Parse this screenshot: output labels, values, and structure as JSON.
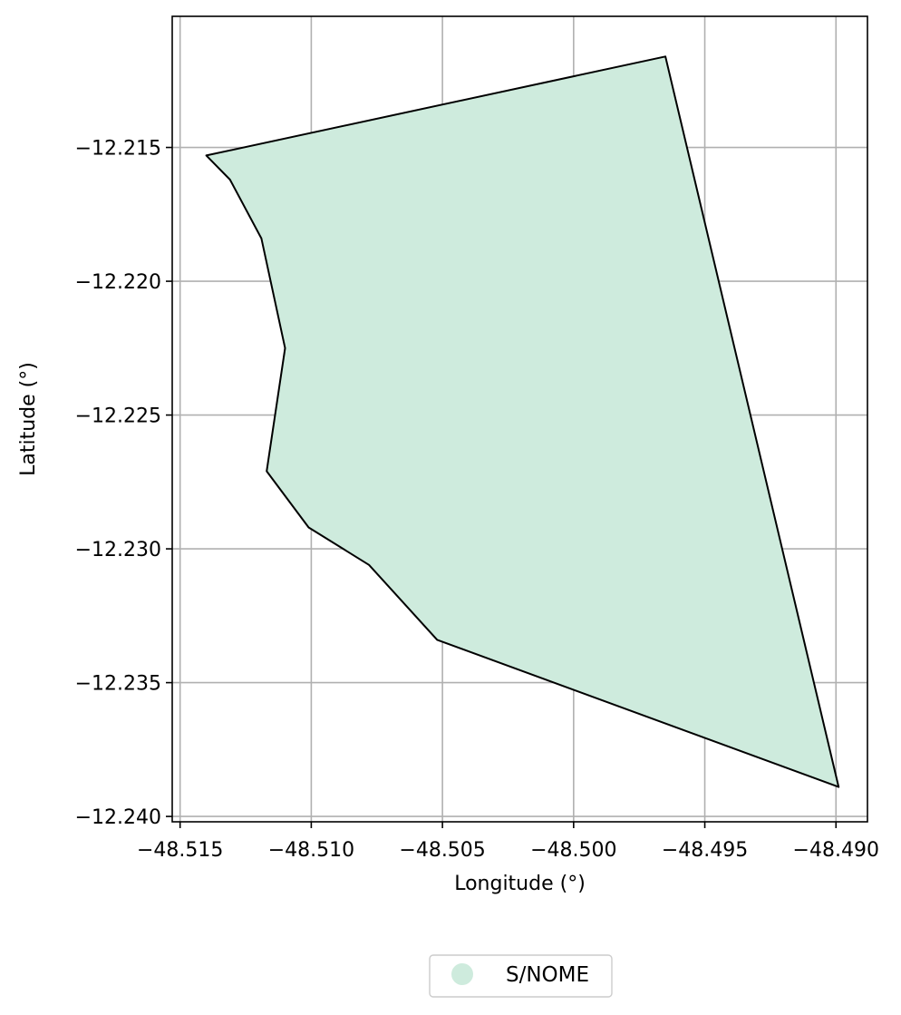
{
  "chart_data": {
    "type": "map",
    "title": "",
    "xlabel": "Longitude (°)",
    "ylabel": "Latitude (°)",
    "xlim": [
      -48.5153,
      -48.4888
    ],
    "ylim": [
      -12.2402,
      -12.2101
    ],
    "xticks": [
      -48.515,
      -48.51,
      -48.505,
      -48.5,
      -48.495,
      -48.49
    ],
    "xtick_labels": [
      "−48.515",
      "−48.510",
      "−48.505",
      "−48.500",
      "−48.495",
      "−48.490"
    ],
    "yticks": [
      -12.215,
      -12.22,
      -12.225,
      -12.23,
      -12.235,
      -12.24
    ],
    "ytick_labels": [
      "−12.215",
      "−12.220",
      "−12.225",
      "−12.230",
      "−12.235",
      "−12.240"
    ],
    "grid": true,
    "legend_position": "bottom-center",
    "series": [
      {
        "name": "S/NOME",
        "fill_color": "#ceebdd",
        "edge_color": "#000000",
        "polygon": [
          [
            -48.4965,
            -12.2116
          ],
          [
            -48.514,
            -12.2153
          ],
          [
            -48.5131,
            -12.2162
          ],
          [
            -48.5119,
            -12.2184
          ],
          [
            -48.511,
            -12.2225
          ],
          [
            -48.5117,
            -12.2271
          ],
          [
            -48.5101,
            -12.2292
          ],
          [
            -48.5078,
            -12.2306
          ],
          [
            -48.5052,
            -12.2334
          ],
          [
            -48.4899,
            -12.2389
          ],
          [
            -48.4965,
            -12.2116
          ]
        ]
      }
    ]
  }
}
